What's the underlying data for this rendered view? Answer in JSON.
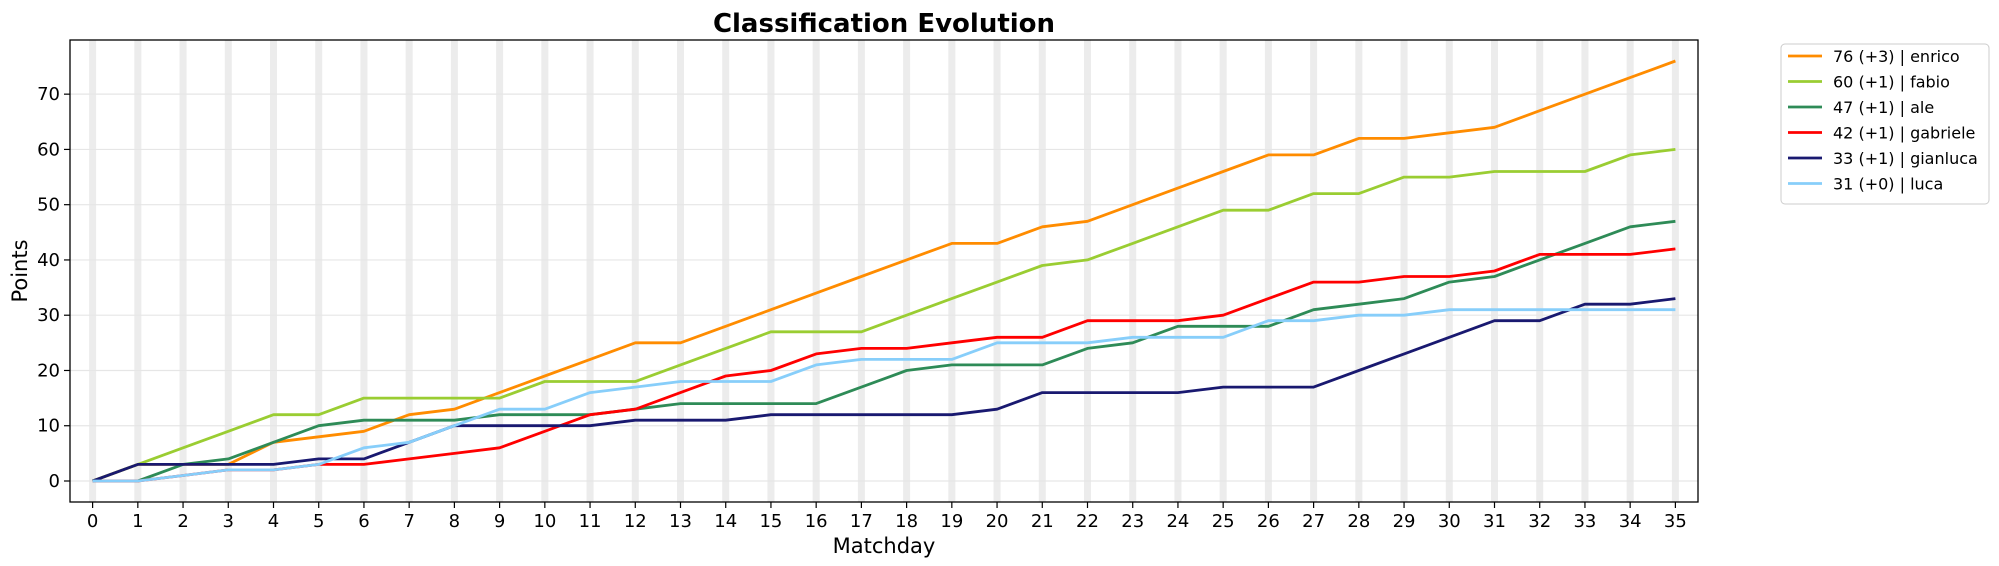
{
  "chart_data": {
    "type": "line",
    "title": "Classification Evolution",
    "xlabel": "Matchday",
    "ylabel": "Points",
    "xlim": [
      -0.5,
      35.5
    ],
    "ylim": [
      -3.8,
      79.8
    ],
    "xticks": [
      0,
      1,
      2,
      3,
      4,
      5,
      6,
      7,
      8,
      9,
      10,
      11,
      12,
      13,
      14,
      15,
      16,
      17,
      18,
      19,
      20,
      21,
      22,
      23,
      24,
      25,
      26,
      27,
      28,
      29,
      30,
      31,
      32,
      33,
      34,
      35
    ],
    "yticks": [
      0,
      10,
      20,
      30,
      40,
      50,
      60,
      70
    ],
    "grid": true,
    "legend_position": "outside-top-right",
    "x": [
      0,
      1,
      2,
      3,
      4,
      5,
      6,
      7,
      8,
      9,
      10,
      11,
      12,
      13,
      14,
      15,
      16,
      17,
      18,
      19,
      20,
      21,
      22,
      23,
      24,
      25,
      26,
      27,
      28,
      29,
      30,
      31,
      32,
      33,
      34,
      35
    ],
    "series": [
      {
        "name": "76 (+3) | enrico",
        "color": "#ff8c00",
        "values": [
          0,
          3,
          3,
          3,
          7,
          8,
          9,
          12,
          13,
          16,
          19,
          22,
          25,
          25,
          28,
          31,
          34,
          37,
          40,
          43,
          43,
          46,
          47,
          50,
          53,
          56,
          59,
          59,
          62,
          62,
          63,
          64,
          67,
          70,
          73,
          76
        ]
      },
      {
        "name": "60 (+1) | fabio",
        "color": "#9acd32",
        "values": [
          0,
          3,
          6,
          9,
          12,
          12,
          15,
          15,
          15,
          15,
          18,
          18,
          18,
          21,
          24,
          27,
          27,
          27,
          30,
          33,
          36,
          39,
          40,
          43,
          46,
          49,
          49,
          52,
          52,
          55,
          55,
          56,
          56,
          56,
          59,
          60
        ]
      },
      {
        "name": "47 (+1) | ale",
        "color": "#2e8b57",
        "values": [
          0,
          0,
          3,
          4,
          7,
          10,
          11,
          11,
          11,
          12,
          12,
          12,
          13,
          14,
          14,
          14,
          14,
          17,
          20,
          21,
          21,
          21,
          24,
          25,
          28,
          28,
          28,
          31,
          32,
          33,
          36,
          37,
          40,
          43,
          46,
          47
        ]
      },
      {
        "name": "42 (+1) | gabriele",
        "color": "#ff0000",
        "values": [
          0,
          0,
          1,
          2,
          2,
          3,
          3,
          4,
          5,
          6,
          9,
          12,
          13,
          16,
          19,
          20,
          23,
          24,
          24,
          25,
          26,
          26,
          29,
          29,
          29,
          30,
          33,
          36,
          36,
          37,
          37,
          38,
          41,
          41,
          41,
          42
        ]
      },
      {
        "name": "33 (+1) | gianluca",
        "color": "#191970",
        "values": [
          0,
          3,
          3,
          3,
          3,
          4,
          4,
          7,
          10,
          10,
          10,
          10,
          11,
          11,
          11,
          12,
          12,
          12,
          12,
          12,
          13,
          16,
          16,
          16,
          16,
          17,
          17,
          17,
          20,
          23,
          26,
          29,
          29,
          32,
          32,
          33
        ]
      },
      {
        "name": "31 (+0) | luca",
        "color": "#87cefa",
        "values": [
          0,
          0,
          1,
          2,
          2,
          3,
          6,
          7,
          10,
          13,
          13,
          16,
          17,
          18,
          18,
          18,
          21,
          22,
          22,
          22,
          25,
          25,
          25,
          26,
          26,
          26,
          29,
          29,
          30,
          30,
          31,
          31,
          31,
          31,
          31,
          31
        ]
      }
    ]
  }
}
